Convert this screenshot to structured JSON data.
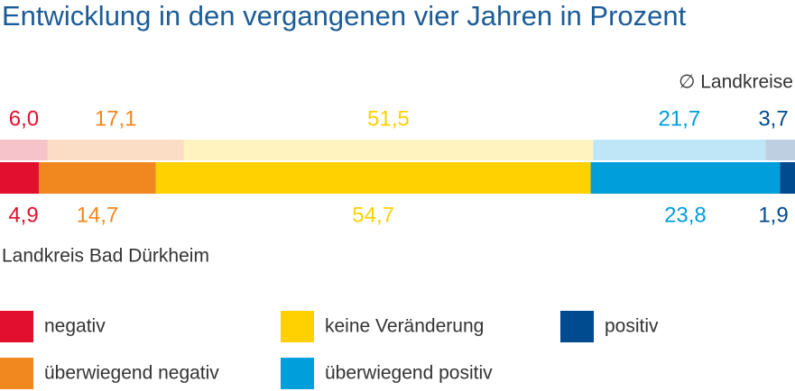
{
  "chart_data": {
    "type": "stacked_bar_100",
    "title": "Entwicklung in den vergangenen vier Jahren in Prozent",
    "categories": [
      "∅ Landkreise",
      "Landkreis Bad Dürkheim"
    ],
    "xlim": [
      0,
      100
    ],
    "series": [
      {
        "name": "negativ",
        "color": "#e30f2f",
        "light_color": "#f7c3cb",
        "values": [
          6.0,
          4.9
        ],
        "value_labels": [
          "6,0",
          "4,9"
        ]
      },
      {
        "name": "überwiegend negativ",
        "color": "#f0871f",
        "light_color": "#fbdcc4",
        "values": [
          17.1,
          14.7
        ],
        "value_labels": [
          "17,1",
          "14,7"
        ]
      },
      {
        "name": "keine Veränderung",
        "color": "#ffd100",
        "light_color": "#fff3c0",
        "values": [
          51.5,
          54.7
        ],
        "value_labels": [
          "51,5",
          "54,7"
        ]
      },
      {
        "name": "überwiegend positiv",
        "color": "#009fdb",
        "light_color": "#bfe6f6",
        "values": [
          21.7,
          23.8
        ],
        "value_labels": [
          "21,7",
          "23,8"
        ]
      },
      {
        "name": "positiv",
        "color": "#004a8f",
        "light_color": "#bfcfe2",
        "values": [
          3.7,
          1.9
        ],
        "value_labels": [
          "3,7",
          "1,9"
        ]
      }
    ]
  }
}
